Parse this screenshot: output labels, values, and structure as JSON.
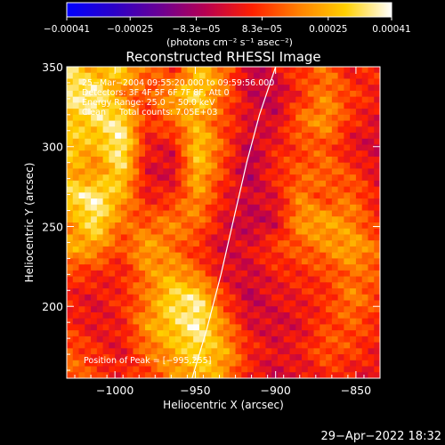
{
  "chart_data": {
    "type": "heatmap",
    "title": "Reconstructed RHESSI Image",
    "xlabel": "Heliocentric X (arcsec)",
    "ylabel": "Heliocentric Y (arcsec)",
    "xlim": [
      -1030,
      -835
    ],
    "ylim": [
      155,
      350
    ],
    "x_ticks": [
      -1000,
      -950,
      -900,
      -850
    ],
    "x_tick_labels": [
      "−1000",
      "−950",
      "−900",
      "−850"
    ],
    "y_ticks": [
      200,
      250,
      300,
      350
    ],
    "y_tick_labels": [
      "200",
      "250",
      "300",
      "350"
    ],
    "colorbar": {
      "ticks": [
        -0.00041,
        -0.00025,
        -8.3e-05,
        8.3e-05,
        0.00025,
        0.00041
      ],
      "tick_labels": [
        "−0.00041",
        "−0.00025",
        "−8.3e−05",
        "8.3e−05",
        "0.00025",
        "0.00041"
      ],
      "unit_label": "(photons cm⁻² s⁻¹ asec⁻²)",
      "colormap": [
        "#0000ff",
        "#2a00c8",
        "#6a0094",
        "#b80050",
        "#ff2000",
        "#ff8000",
        "#ffd000",
        "#ffffff"
      ]
    },
    "annotations": {
      "time": "25−Mar−2004 09:55:20.000 to 09:59:56.000",
      "detectors": "Detectors: 3F 4F 5F 6F 7F 8F, Att 0",
      "energy": "Energy Range: 25.0 − 50.0 keV",
      "method": "Clean     Total counts: 7.05E+03",
      "peak": "Position of Peak = [−995,255]"
    },
    "limb_curve": {
      "x": [
        -952,
        -943,
        -934,
        -926,
        -918,
        -910,
        -900
      ],
      "y": [
        155,
        185,
        220,
        255,
        290,
        320,
        350
      ]
    },
    "intensity_grid": {
      "x_range": [
        -1030,
        -835
      ],
      "y_range": [
        155,
        350
      ],
      "cols": 13,
      "rows": 13,
      "note_values_normalized_0_to_1": [
        [
          0.85,
          0.7,
          0.8,
          0.55,
          0.4,
          0.75,
          0.6,
          0.2,
          0.3,
          0.45,
          0.55,
          0.35,
          0.4
        ],
        [
          0.9,
          0.95,
          0.6,
          0.45,
          0.7,
          0.85,
          0.55,
          0.25,
          0.2,
          0.4,
          0.6,
          0.45,
          0.35
        ],
        [
          0.75,
          0.85,
          0.9,
          0.4,
          0.55,
          0.7,
          0.45,
          0.3,
          0.25,
          0.55,
          0.65,
          0.4,
          0.3
        ],
        [
          0.8,
          0.7,
          0.95,
          0.35,
          0.3,
          0.8,
          0.5,
          0.2,
          0.35,
          0.45,
          0.5,
          0.3,
          0.25
        ],
        [
          0.7,
          0.6,
          0.85,
          0.3,
          0.25,
          0.75,
          0.45,
          0.15,
          0.4,
          0.5,
          0.55,
          0.45,
          0.3
        ],
        [
          0.85,
          0.95,
          0.7,
          0.35,
          0.4,
          0.65,
          0.35,
          0.25,
          0.3,
          0.6,
          0.45,
          0.55,
          0.35
        ],
        [
          0.6,
          0.9,
          0.55,
          0.5,
          0.6,
          0.55,
          0.3,
          0.2,
          0.25,
          0.65,
          0.7,
          0.6,
          0.4
        ],
        [
          0.7,
          0.65,
          0.45,
          0.7,
          0.55,
          0.4,
          0.25,
          0.3,
          0.45,
          0.5,
          0.6,
          0.7,
          0.55
        ],
        [
          0.45,
          0.4,
          0.35,
          0.6,
          0.7,
          0.55,
          0.3,
          0.25,
          0.35,
          0.4,
          0.45,
          0.55,
          0.5
        ],
        [
          0.35,
          0.3,
          0.4,
          0.55,
          0.85,
          0.9,
          0.45,
          0.2,
          0.3,
          0.35,
          0.4,
          0.6,
          0.45
        ],
        [
          0.4,
          0.3,
          0.35,
          0.65,
          0.8,
          0.95,
          0.6,
          0.3,
          0.25,
          0.3,
          0.45,
          0.5,
          0.4
        ],
        [
          0.5,
          0.4,
          0.3,
          0.55,
          0.7,
          0.85,
          0.7,
          0.4,
          0.3,
          0.35,
          0.5,
          0.45,
          0.35
        ],
        [
          0.55,
          0.45,
          0.35,
          0.45,
          0.6,
          0.75,
          0.65,
          0.35,
          0.25,
          0.3,
          0.4,
          0.35,
          0.3
        ]
      ]
    }
  },
  "footer": {
    "date": "29−Apr−2022 18:32"
  }
}
